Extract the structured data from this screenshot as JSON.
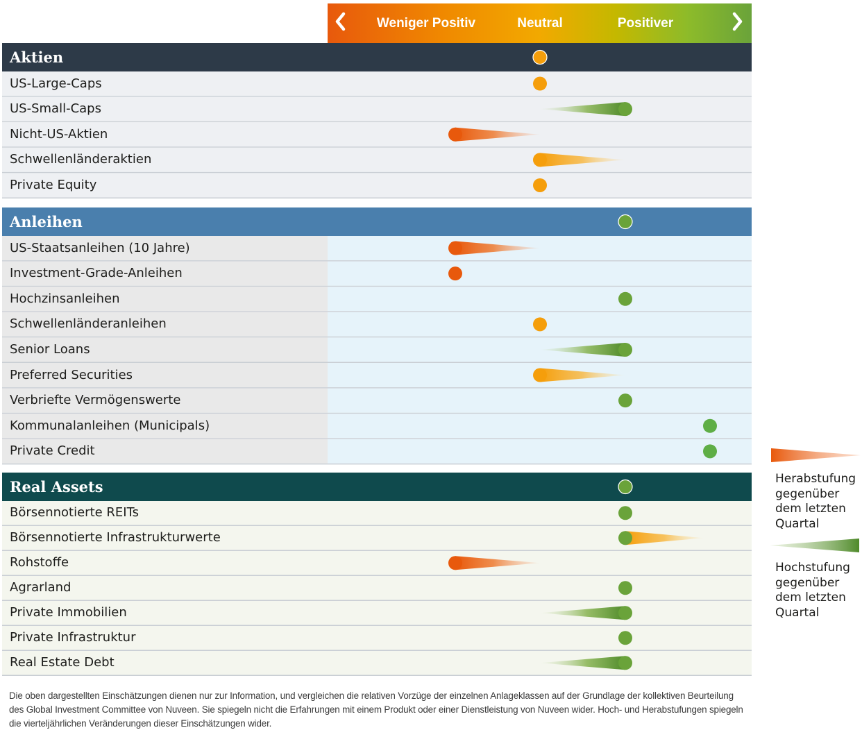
{
  "scale": {
    "left_label": "Weniger Positiv",
    "center_label": "Neutral",
    "right_label": "Positiver",
    "left_icon": "chevron-left-icon",
    "right_icon": "chevron-right-icon"
  },
  "colors": {
    "aktien_header": "#2d3a48",
    "anleihen_header": "#4a7fad",
    "real_assets_header": "#0f4a4d",
    "downgrade": "#e8590c",
    "neutral_marker": "#f59e0b",
    "upgrade": "#6aa33a",
    "positive_dot": "#5fae46"
  },
  "chart_data": {
    "type": "table",
    "scale_positions": [
      "Weniger Positiv",
      "Neutral",
      "Positiver"
    ],
    "sections": [
      {
        "id": "aktien",
        "title": "Aktien",
        "marker": {
          "pos": 3
        },
        "rows": [
          {
            "label": "US-Large-Caps",
            "pos": 3
          },
          {
            "label": "US-Small-Caps",
            "pos": 4,
            "from": 3
          },
          {
            "label": "Nicht-US-Aktien",
            "pos": 2,
            "from": 3
          },
          {
            "label": "Schwellenländeraktien",
            "pos": 3,
            "from": 4
          },
          {
            "label": "Private Equity",
            "pos": 3
          }
        ]
      },
      {
        "id": "anleihen",
        "title": "Anleihen",
        "marker": {
          "pos": 4
        },
        "rows": [
          {
            "label": "US-Staatsanleihen (10 Jahre)",
            "pos": 2,
            "from": 3
          },
          {
            "label": "Investment-Grade-Anleihen",
            "pos": 2
          },
          {
            "label": "Hochzinsanleihen",
            "pos": 4
          },
          {
            "label": "Schwellenländeranleihen",
            "pos": 3
          },
          {
            "label": "Senior Loans",
            "pos": 4,
            "from": 3
          },
          {
            "label": "Preferred Securities",
            "pos": 3,
            "from": 4
          },
          {
            "label": "Verbriefte Vermögenswerte",
            "pos": 4
          },
          {
            "label": "Kommunalanleihen (Municipals)",
            "pos": 5
          },
          {
            "label": "Private Credit",
            "pos": 5
          }
        ]
      },
      {
        "id": "real_assets",
        "title": "Real Assets",
        "marker": {
          "pos": 4
        },
        "rows": [
          {
            "label": "Börsennotierte REITs",
            "pos": 4
          },
          {
            "label": "Börsennotierte Infrastrukturwerte",
            "pos": 4,
            "from": 5
          },
          {
            "label": "Rohstoffe",
            "pos": 2,
            "from": 3
          },
          {
            "label": "Agrarland",
            "pos": 4
          },
          {
            "label": "Private Immobilien",
            "pos": 4,
            "from": 3
          },
          {
            "label": "Private Infrastruktur",
            "pos": 4
          },
          {
            "label": "Real Estate Debt",
            "pos": 4,
            "from": 3
          }
        ]
      }
    ]
  },
  "legend": {
    "downgrade_text": "Herabstufung gegenüber dem letzten Quartal",
    "upgrade_text": "Hochstufung gegenüber dem letzten Quartal"
  },
  "footnote": "Die oben dargestellten Einschätzungen dienen nur zur Information, und vergleichen die relativen Vorzüge der einzelnen Anlageklassen auf der Grundlage der kollektiven Beurteilung des Global Investment Committee von Nuveen. Sie spiegeln nicht die Erfahrungen mit einem Produkt oder einer Dienstleistung von Nuveen wider. Hoch- und Herabstufungen spiegeln die vierteljährlichen Veränderungen dieser Einschätzungen wider."
}
